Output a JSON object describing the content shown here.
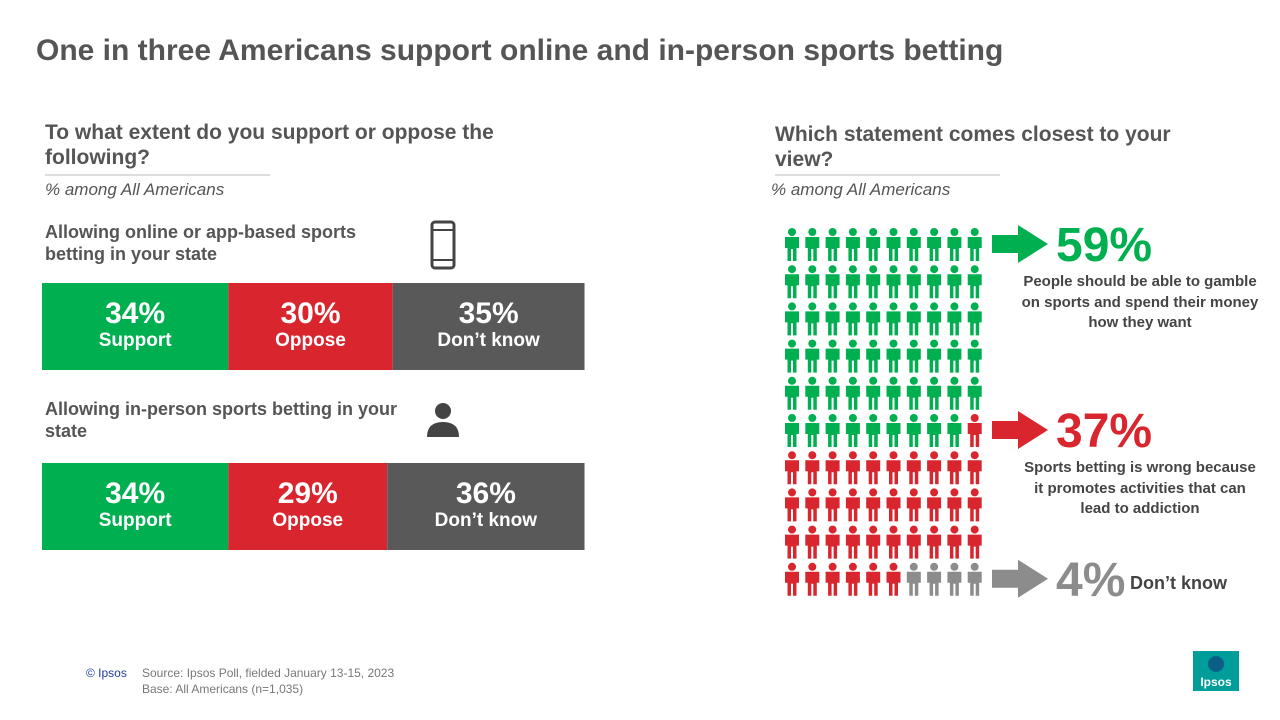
{
  "title": "One in three Americans support online and in-person sports betting",
  "chart_data": [
    {
      "type": "stacked_bar",
      "title": "To what extent do you support or oppose the following?",
      "subtitle": "% among All Americans",
      "categories": [
        "Allowing online or app-based sports betting in your state",
        "Allowing in-person sports betting in your state"
      ],
      "series": [
        {
          "name": "Support",
          "color": "#00b050",
          "values": [
            34,
            34
          ],
          "value_labels": [
            "34%",
            "34%"
          ]
        },
        {
          "name": "Oppose",
          "color": "#d9262e",
          "values": [
            30,
            29
          ],
          "value_labels": [
            "30%",
            "29%"
          ]
        },
        {
          "name": "Don’t know",
          "color": "#595959",
          "values": [
            35,
            36
          ],
          "value_labels": [
            "35%",
            "36%"
          ]
        }
      ]
    },
    {
      "type": "pictogram",
      "title": "Which statement comes closest to your view?",
      "subtitle": "% among All Americans",
      "categories": [
        "People should be able to gamble on sports and spend their money how they want",
        "Sports betting is wrong because it promotes activities that can lead to addiction",
        "Don’t know"
      ],
      "values": [
        59,
        37,
        4
      ],
      "value_labels": [
        "59%",
        "37%",
        "4%"
      ],
      "colors": [
        "#00b050",
        "#d9262e",
        "#8c8c8c"
      ]
    }
  ],
  "footer": {
    "copyright": "© Ipsos",
    "source": "Source: Ipsos Poll, fielded January 13-15, 2023",
    "base": "Base: All Americans (n=1,035)",
    "logo": "Ipsos"
  }
}
